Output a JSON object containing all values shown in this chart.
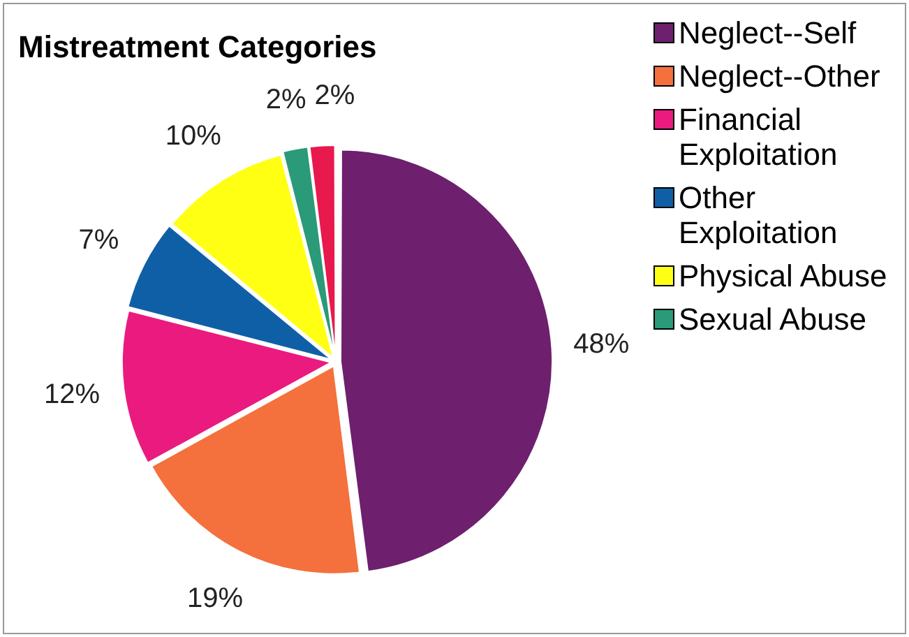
{
  "chart_data": {
    "type": "pie",
    "title": "Mistreatment Categories",
    "categories": [
      "Neglect--Self",
      "Neglect--Other",
      "Financial Exploitation",
      "Other Exploitation",
      "Physical Abuse",
      "Sexual Abuse",
      null
    ],
    "values": [
      48,
      19,
      12,
      7,
      10,
      2,
      2
    ],
    "value_labels": [
      "48%",
      "19%",
      "12%",
      "7%",
      "10%",
      "2%",
      "2%"
    ],
    "colors": [
      "#6e1f6e",
      "#f4703c",
      "#ea1a7f",
      "#0f5fa6",
      "#ffff14",
      "#2a9a78",
      "#e8194c"
    ],
    "legend": "right"
  }
}
